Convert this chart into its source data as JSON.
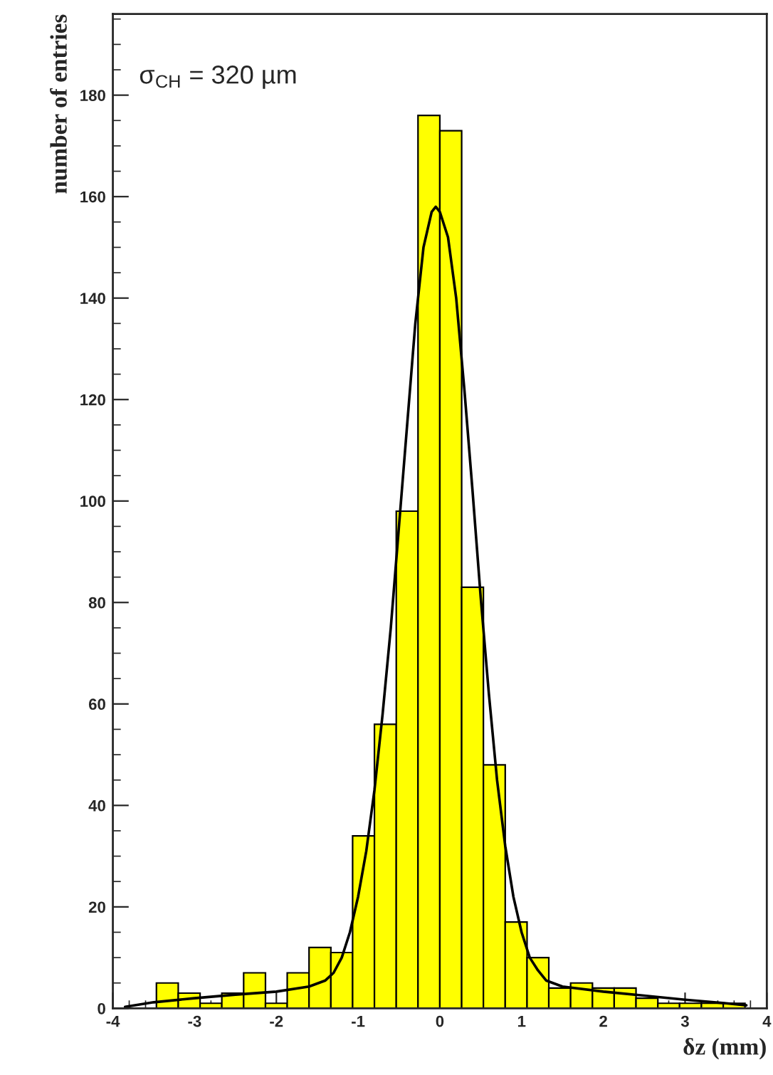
{
  "chart_data": {
    "type": "histogram",
    "xlabel": "δz (mm)",
    "ylabel": "number of entries",
    "annotations": [
      "σ$_{CH}$ = 320 µm"
    ],
    "bins": [
      -4,
      -3.733,
      -3.467,
      -3.2,
      -2.933,
      -2.667,
      -2.4,
      -2.133,
      -1.867,
      -1.6,
      -1.333,
      -1.067,
      -0.8,
      -0.533,
      -0.267,
      0,
      0.267,
      0.533,
      0.8,
      1.067,
      1.333,
      1.6,
      1.867,
      2.133,
      2.4,
      2.667,
      2.933,
      3.2,
      3.467,
      3.733,
      4
    ],
    "values": [
      0,
      0,
      5,
      3,
      1,
      3,
      7,
      1,
      7,
      12,
      11,
      34,
      56,
      98,
      176,
      173,
      83,
      48,
      17,
      10,
      4,
      5,
      4,
      4,
      2,
      1,
      1,
      1,
      1,
      0
    ],
    "color": "#ffff00",
    "series": [
      {
        "type": "line",
        "color": "#000000",
        "x": [
          -3.85,
          -3.5,
          -3,
          -2.5,
          -2,
          -1.6,
          -1.4,
          -1.3,
          -1.2,
          -1.1,
          -1.0,
          -0.9,
          -0.8,
          -0.7,
          -0.6,
          -0.5,
          -0.4,
          -0.3,
          -0.2,
          -0.1,
          -0.05,
          0,
          0.1,
          0.2,
          0.3,
          0.4,
          0.5,
          0.6,
          0.7,
          0.8,
          0.9,
          1.0,
          1.1,
          1.2,
          1.3,
          1.5,
          2,
          2.5,
          3,
          3.5,
          3.75
        ],
        "values": [
          0.3,
          1.2,
          2,
          2.7,
          3.3,
          4.3,
          5.5,
          7,
          10,
          15,
          22,
          31,
          43,
          58,
          75,
          95,
          115,
          135,
          150,
          157,
          158,
          157,
          152,
          140,
          122,
          102,
          81,
          62,
          45,
          32,
          22,
          15,
          10,
          7.5,
          5.5,
          4.3,
          3.3,
          2.5,
          1.7,
          1.0,
          0.6
        ]
      }
    ],
    "xlim": [
      -4,
      4
    ],
    "ylim": [
      0,
      196
    ],
    "xticks": [
      -4,
      -3,
      -2,
      -1,
      0,
      1,
      2,
      3,
      4
    ],
    "yticks": [
      0,
      20,
      40,
      60,
      80,
      100,
      120,
      140,
      160,
      180
    ],
    "grid": false,
    "legend": false
  }
}
